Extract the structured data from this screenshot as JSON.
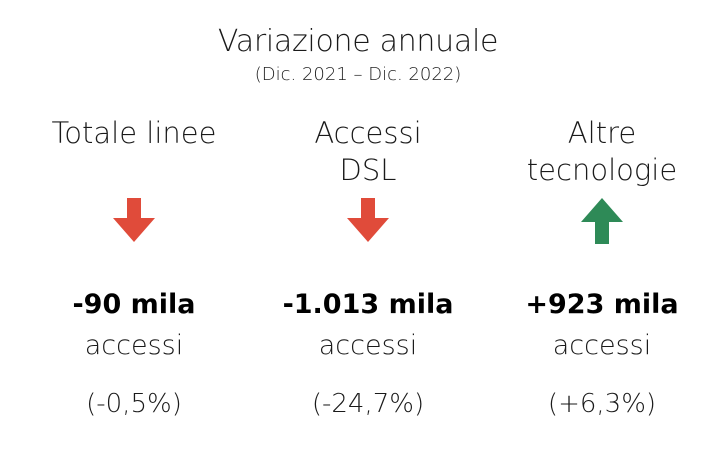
{
  "header": {
    "title": "Variazione annuale",
    "subtitle": "(Dic. 2021 – Dic. 2022)"
  },
  "columns": [
    {
      "label_lines": [
        "Totale linee"
      ],
      "direction": "down",
      "arrow_color": "#e04b3a",
      "value": "-90 mila",
      "unit": "accessi",
      "percent": "(-0,5%)"
    },
    {
      "label_lines": [
        "Accessi",
        "DSL"
      ],
      "direction": "down",
      "arrow_color": "#e04b3a",
      "value": "-1.013 mila",
      "unit": "accessi",
      "percent": "(-24,7%)"
    },
    {
      "label_lines": [
        "Altre",
        "tecnologie"
      ],
      "direction": "up",
      "arrow_color": "#2e8a57",
      "value": "+923 mila",
      "unit": "accessi",
      "percent": "(+6,3%)"
    }
  ]
}
